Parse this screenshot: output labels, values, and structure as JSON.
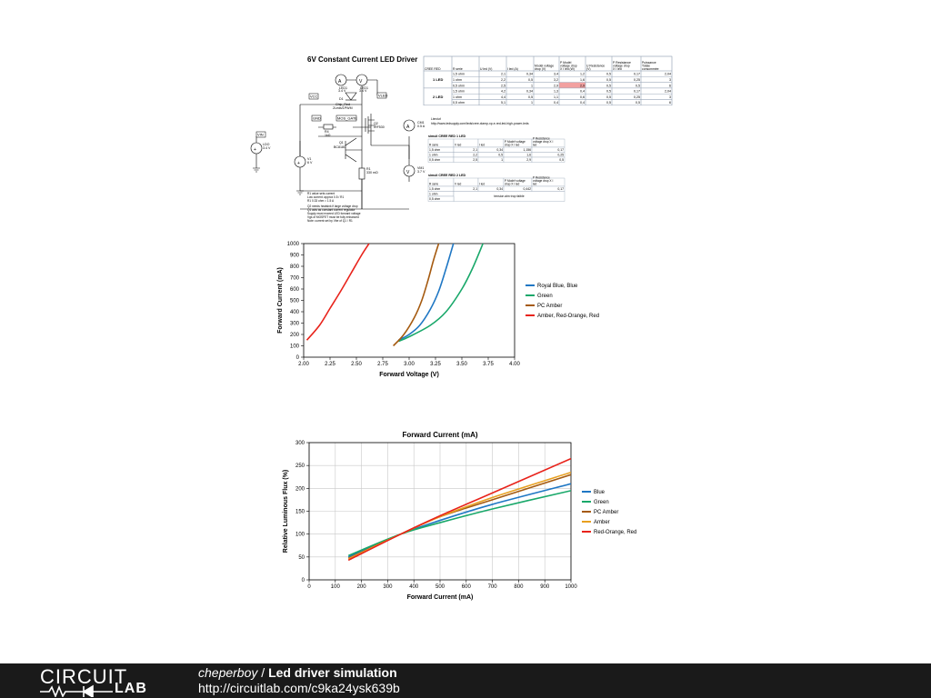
{
  "schematic": {
    "title": "6V Constant Current LED Driver",
    "labels": {
      "led1": "LED1",
      "led1_val": "3.4 V",
      "led2": "LED1",
      "led2_val": "3.4 V",
      "d1": "D1",
      "d1_name": "Chip_Red",
      "d1_note": "2Leds/1PWM",
      "r4": "R4",
      "r4_val": "1kΩ",
      "q1": "Q1",
      "q1_name": "BC818C",
      "q2": "Q2",
      "q2_name": "IRF530",
      "r1": "R1",
      "r1_val": "330 mΩ",
      "v1": "V1",
      "v1_val": "6 V",
      "vin": "VIN",
      "vcc": "VCC",
      "vled": "VLED",
      "gnd": "GND",
      "cur_out": "I_LED",
      "mos_gate": "MOS_GATE",
      "ldo": "LDO",
      "ldo_val": "3.4 V",
      "cm1": "CM1",
      "cm1_val": "0.5 A",
      "vm1": "VM1",
      "vm1_val": "3.7 V"
    },
    "notes": [
      "R1 value sets current",
      "Low current: approx 0.5 / R1",
      "R1 0.33 ohm = 1.5 A",
      "Q2 needs heatsink if large voltage drop",
      "Q1 acts as constant current regulator",
      "Supply must exceed LED forward voltage",
      "Vgs of MOSFET must be fully enhanced",
      "Note: current set by Vbe of Q1 / R1"
    ]
  },
  "cree_table": {
    "headers": [
      "CREE RED",
      "R serie",
      "U led (V)",
      "I led (A)",
      "Modèl voltage drop (V)",
      "P Modèl voltage drop X I led (W)",
      "U Resistance (V)",
      "P Resistance voltage drop X I led",
      "Puissance Totale consommée"
    ],
    "groups": [
      {
        "label": "1 LED",
        "rows": [
          [
            "1,5 ohm",
            "2,1",
            "0,34",
            "3,4",
            "1,2",
            "0,5",
            "0,17",
            "2,04"
          ],
          [
            "1 ohm",
            "2,2",
            "0,5",
            "3,2",
            "1,6",
            "0,5",
            "0,25",
            "3"
          ],
          [
            "0,5 ohm",
            "2,5",
            "1",
            "2,9",
            "2,9",
            "0,5",
            "0,5",
            "6"
          ]
        ]
      },
      {
        "label": "2 LED",
        "rows": [
          [
            "1,5 ohm",
            "4,2",
            "0,34",
            "1,3",
            "0,4",
            "0,5",
            "0,17",
            "2,04"
          ],
          [
            "1 ohm",
            "4,4",
            "0,5",
            "1,1",
            "0,6",
            "0,5",
            "0,25",
            "3"
          ],
          [
            "0,5 ohm",
            "5,1",
            "1",
            "0,4",
            "0,4",
            "0,5",
            "0,5",
            "6"
          ]
        ]
      }
    ],
    "link_label": "Lien/url",
    "link": "http://www.ledsupply.com/leds/cree-xlamp-xp-e-red-led-high-power-leds"
  },
  "sim_table1": {
    "title": "simuli CREE RED 1 LED",
    "headers": [
      "R serie",
      "V led",
      "I led",
      "P Modèl voltage drop X I led",
      "P Resistance voltage drop X I led"
    ],
    "rows": [
      [
        "1,5 ohm",
        "2,1",
        "0,34",
        "1,156",
        "0,17"
      ],
      [
        "1 ohm",
        "2,2",
        "0,5",
        "1,6",
        "0,25"
      ],
      [
        "0,5 ohm",
        "2,5",
        "1",
        "2,9",
        "0,5"
      ]
    ]
  },
  "sim_table2": {
    "title": "simuli CREE RED 2 LED",
    "headers": [
      "R serie",
      "V led",
      "I led",
      "P Modèl voltage drop X I led",
      "P Resistance voltage drop X I led"
    ],
    "rows": [
      [
        "1,5 ohm",
        "2,1",
        "0,34",
        "0,442",
        "0,17"
      ],
      [
        "1 ohm",
        "",
        "",
        "",
        ""
      ],
      [
        "0,5 ohm",
        "",
        "",
        "",
        ""
      ]
    ],
    "merged_note": "tension aim trop faible"
  },
  "chart_data": [
    {
      "type": "line",
      "title": "",
      "xlabel": "Forward Voltage (V)",
      "ylabel": "Forward Current (mA)",
      "xlim": [
        2.0,
        4.0
      ],
      "ylim": [
        0,
        1000
      ],
      "xticks": [
        "2.00",
        "2.25",
        "2.50",
        "2.75",
        "3.00",
        "3.25",
        "3.50",
        "3.75",
        "4.00"
      ],
      "yticks": [
        "0",
        "100",
        "200",
        "300",
        "400",
        "500",
        "600",
        "700",
        "800",
        "900",
        "1000"
      ],
      "grid": false,
      "legend": "right",
      "series": [
        {
          "name": "Royal Blue, Blue",
          "color": "#1f77c4",
          "x": [
            2.9,
            3.0,
            3.1,
            3.2,
            3.28,
            3.35,
            3.42
          ],
          "y": [
            150,
            200,
            280,
            420,
            580,
            780,
            1000
          ]
        },
        {
          "name": "Green",
          "color": "#19a86a",
          "x": [
            2.9,
            3.0,
            3.2,
            3.35,
            3.5,
            3.6,
            3.7
          ],
          "y": [
            140,
            180,
            280,
            400,
            600,
            780,
            1000
          ]
        },
        {
          "name": "PC Amber",
          "color": "#a55a10",
          "x": [
            2.85,
            2.95,
            3.05,
            3.12,
            3.18,
            3.23,
            3.28
          ],
          "y": [
            100,
            200,
            350,
            500,
            680,
            850,
            1000
          ]
        },
        {
          "name": "Amber, Red-Orange, Red",
          "color": "#e8231b",
          "x": [
            2.03,
            2.15,
            2.25,
            2.35,
            2.45,
            2.55,
            2.62
          ],
          "y": [
            150,
            280,
            430,
            580,
            740,
            900,
            1000
          ]
        }
      ]
    },
    {
      "type": "line",
      "title": "Forward Current (mA)",
      "xlabel": "Forward Current (mA)",
      "ylabel": "Relative Luminous Flux (%)",
      "xlim": [
        0,
        1000
      ],
      "ylim": [
        0,
        300
      ],
      "xticks": [
        "0",
        "100",
        "200",
        "300",
        "400",
        "500",
        "600",
        "700",
        "800",
        "900",
        "1000"
      ],
      "yticks": [
        "0",
        "50",
        "100",
        "150",
        "200",
        "250",
        "300"
      ],
      "grid": true,
      "legend": "right",
      "series": [
        {
          "name": "Blue",
          "color": "#1f77c4",
          "x": [
            150,
            350,
            500,
            700,
            1000
          ],
          "y": [
            50,
            100,
            130,
            165,
            210
          ]
        },
        {
          "name": "Green",
          "color": "#19a86a",
          "x": [
            150,
            350,
            500,
            700,
            1000
          ],
          "y": [
            53,
            100,
            125,
            155,
            195
          ]
        },
        {
          "name": "PC Amber",
          "color": "#a55a10",
          "x": [
            150,
            350,
            500,
            700,
            1000
          ],
          "y": [
            47,
            100,
            138,
            175,
            230
          ]
        },
        {
          "name": "Amber",
          "color": "#e8a020",
          "x": [
            150,
            350,
            500,
            700,
            1000
          ],
          "y": [
            46,
            100,
            138,
            180,
            235
          ]
        },
        {
          "name": "Red-Orange, Red",
          "color": "#e8231b",
          "x": [
            150,
            350,
            500,
            700,
            1000
          ],
          "y": [
            43,
            100,
            140,
            190,
            265
          ]
        }
      ]
    }
  ],
  "footer": {
    "logo_circuit": "CIRCUIT",
    "logo_lab": "LAB",
    "user": "cheperboy",
    "separator": " / ",
    "title": "Led driver simulation",
    "url": "http://circuitlab.com/c9ka24ysk639b"
  }
}
